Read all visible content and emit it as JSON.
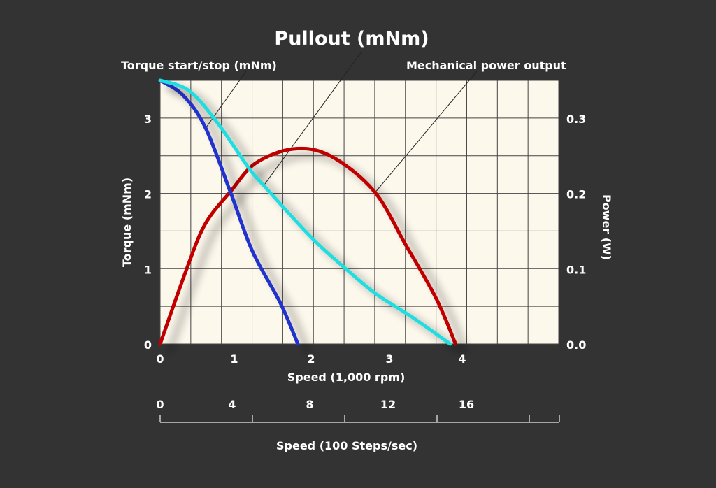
{
  "chart_data": {
    "type": "line",
    "title": "Pullout (mNm)",
    "xlabel": "Speed  (1,000 rpm)",
    "ylabel": "Torque  (mNm)",
    "y2label": "Power  (W)",
    "x2label": "Speed  (100 Steps/sec)",
    "xlim": [
      0,
      5.18
    ],
    "ylim": [
      0,
      3.5
    ],
    "y2lim": [
      0,
      0.35
    ],
    "grid": true,
    "x_ticks": [
      "0",
      "1",
      "2",
      "3",
      "4"
    ],
    "y_ticks": [
      "0",
      "1",
      "2",
      "3"
    ],
    "y2_ticks": [
      "0.0",
      "0.1",
      "0.2",
      "0.3"
    ],
    "x2_ticks": [
      "0",
      "4",
      "8",
      "12",
      "16"
    ],
    "annotations": [
      "Torque start/stop (mNm)",
      "Pullout (mNm)",
      "Mechanical power output"
    ],
    "series": [
      {
        "name": "Torque start/stop (mNm)",
        "axis": "left",
        "color": "#2233cc",
        "x": [
          0,
          0.3,
          0.59,
          0.92,
          1.2,
          1.56,
          1.79
        ],
        "y": [
          3.5,
          3.3,
          2.87,
          2.0,
          1.23,
          0.55,
          0
        ]
      },
      {
        "name": "Pullout (mNm)",
        "axis": "left",
        "color": "#22dde0",
        "x": [
          0,
          0.38,
          0.75,
          1.15,
          1.36,
          1.97,
          2.4,
          2.8,
          3.27,
          3.77
        ],
        "y": [
          3.5,
          3.36,
          2.93,
          2.34,
          2.09,
          1.41,
          1.01,
          0.67,
          0.36,
          0
        ]
      },
      {
        "name": "Mechanical power output",
        "axis": "right",
        "color": "#c00000",
        "x": [
          0,
          0.35,
          0.59,
          0.92,
          1.24,
          1.73,
          2.21,
          2.78,
          3.19,
          3.59,
          3.84
        ],
        "y": [
          0,
          0.101,
          0.16,
          0.203,
          0.24,
          0.259,
          0.25,
          0.203,
          0.132,
          0.06,
          0
        ]
      }
    ],
    "colors": {
      "background": "#333333",
      "plot_background": "#fdf8ec",
      "grid": "#444444"
    }
  }
}
